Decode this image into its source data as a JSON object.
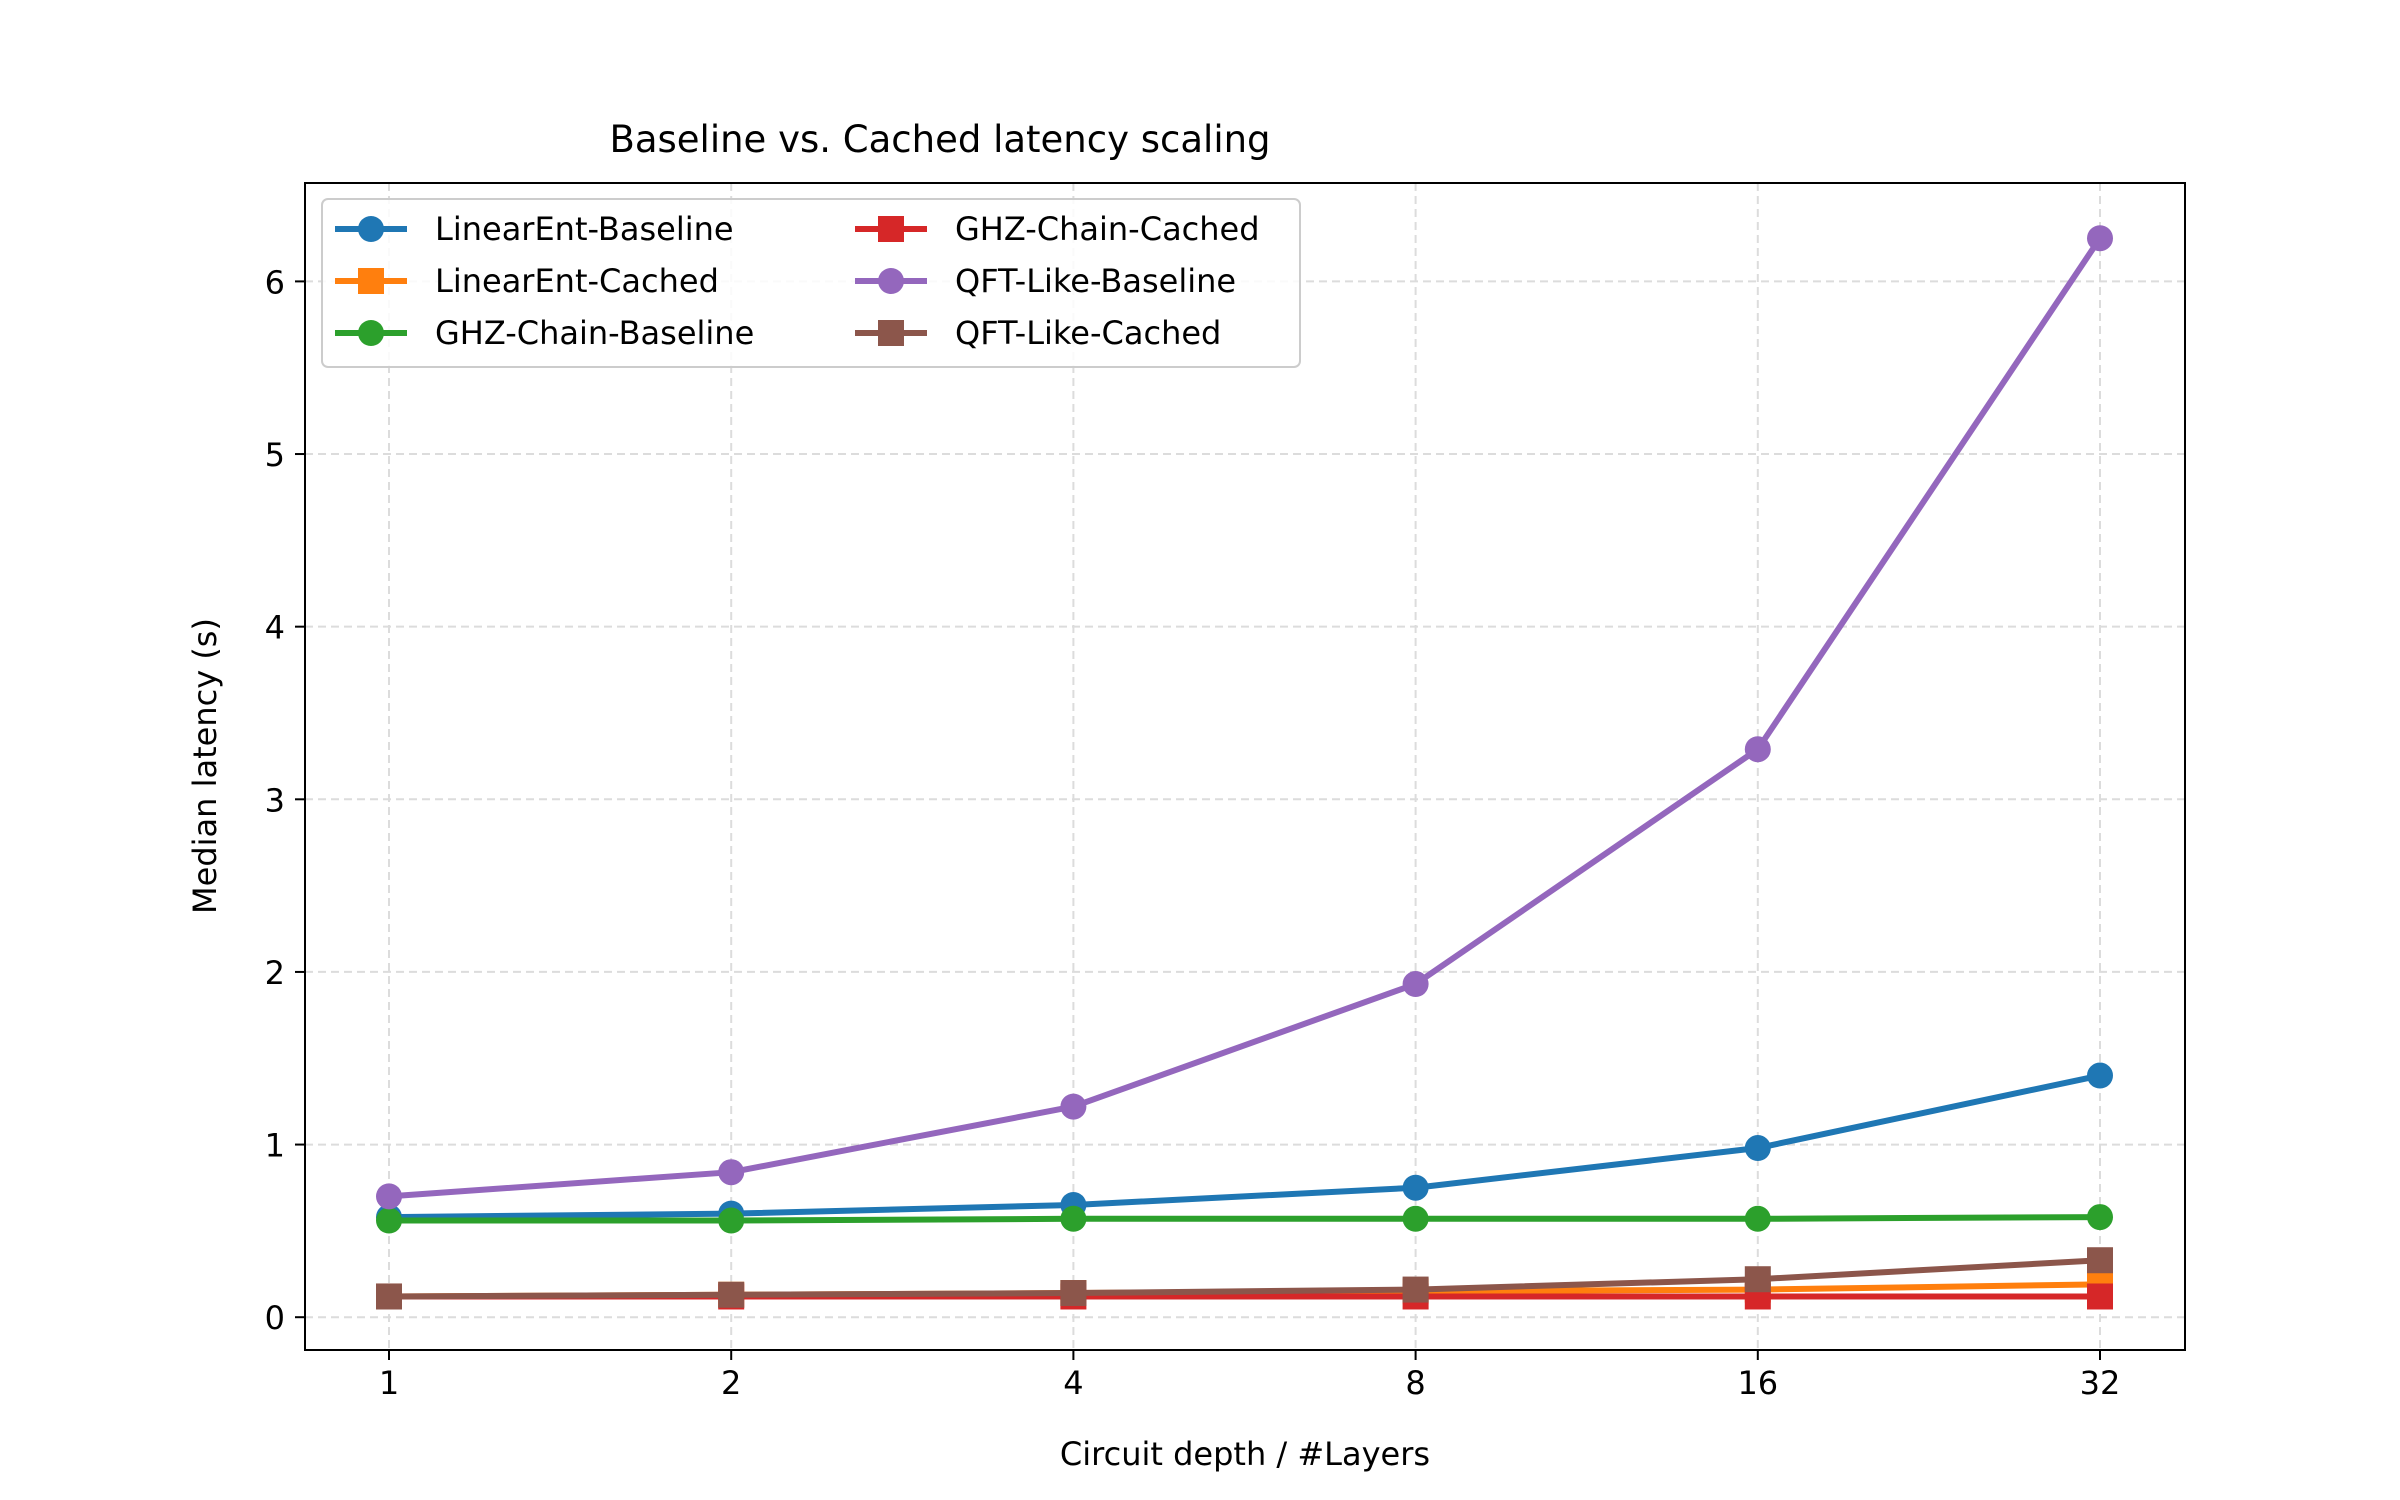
{
  "chart_data": {
    "type": "line",
    "title": "Baseline vs. Cached latency scaling",
    "xlabel": "Circuit depth / #Layers",
    "ylabel": "Median latency (s)",
    "x_scale": "log2",
    "x": [
      1,
      2,
      4,
      8,
      16,
      32
    ],
    "x_tick_labels": [
      "1",
      "2",
      "4",
      "8",
      "16",
      "32"
    ],
    "y_ticks": [
      0,
      1,
      2,
      3,
      4,
      5,
      6
    ],
    "y_tick_labels": [
      "0",
      "1",
      "2",
      "3",
      "4",
      "5",
      "6"
    ],
    "ylim": [
      -0.19,
      6.57
    ],
    "grid": true,
    "legend_position": "upper-left",
    "legend_columns": 2,
    "series": [
      {
        "name": "LinearEnt-Baseline",
        "color": "#1f77b4",
        "marker": "circle",
        "values": [
          0.58,
          0.6,
          0.65,
          0.75,
          0.98,
          1.4
        ]
      },
      {
        "name": "LinearEnt-Cached",
        "color": "#ff7f0e",
        "marker": "square",
        "values": [
          0.12,
          0.13,
          0.14,
          0.15,
          0.16,
          0.19
        ]
      },
      {
        "name": "GHZ-Chain-Baseline",
        "color": "#2ca02c",
        "marker": "circle",
        "values": [
          0.56,
          0.56,
          0.57,
          0.57,
          0.57,
          0.58
        ]
      },
      {
        "name": "GHZ-Chain-Cached",
        "color": "#d62728",
        "marker": "square",
        "values": [
          0.12,
          0.12,
          0.12,
          0.12,
          0.12,
          0.12
        ]
      },
      {
        "name": "QFT-Like-Baseline",
        "color": "#9467bd",
        "marker": "circle",
        "values": [
          0.7,
          0.84,
          1.22,
          1.93,
          3.29,
          6.25
        ]
      },
      {
        "name": "QFT-Like-Cached",
        "color": "#8c564b",
        "marker": "square",
        "values": [
          0.12,
          0.13,
          0.14,
          0.16,
          0.22,
          0.33
        ]
      }
    ]
  }
}
